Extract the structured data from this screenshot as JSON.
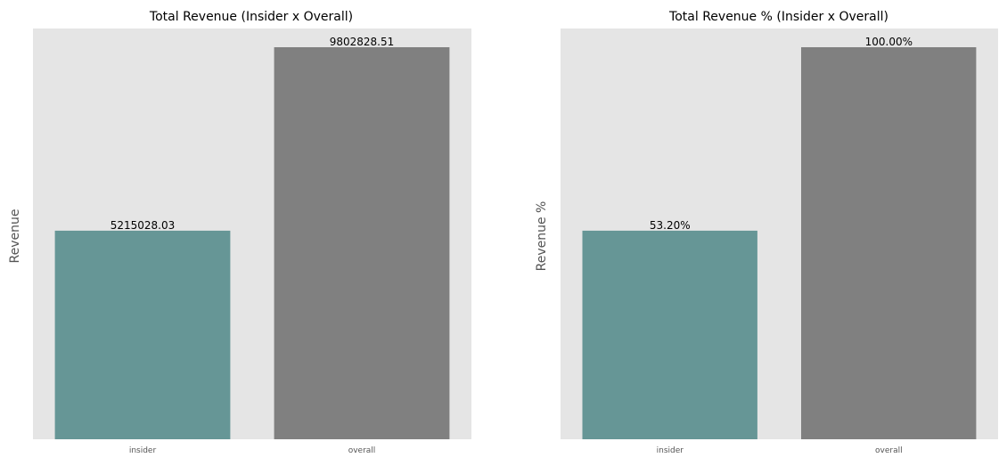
{
  "chart_data": [
    {
      "type": "bar",
      "title": "Total Revenue (Insider x Overall)",
      "xlabel": "",
      "ylabel": "Revenue",
      "categories": [
        "insider",
        "overall"
      ],
      "values": [
        5215028.03,
        9802828.51
      ],
      "data_labels": [
        "5215028.03",
        "9802828.51"
      ],
      "colors": [
        "#669696",
        "#808080"
      ],
      "ylim": [
        0,
        9802828.51
      ],
      "grid": false,
      "background": "#e5e5e5"
    },
    {
      "type": "bar",
      "title": "Total Revenue % (Insider x Overall)",
      "xlabel": "",
      "ylabel": "Revenue %",
      "categories": [
        "insider",
        "overall"
      ],
      "values": [
        53.2,
        100.0
      ],
      "data_labels": [
        "53.20%",
        "100.00%"
      ],
      "colors": [
        "#669696",
        "#808080"
      ],
      "ylim": [
        0,
        100
      ],
      "grid": false,
      "background": "#e5e5e5"
    }
  ]
}
